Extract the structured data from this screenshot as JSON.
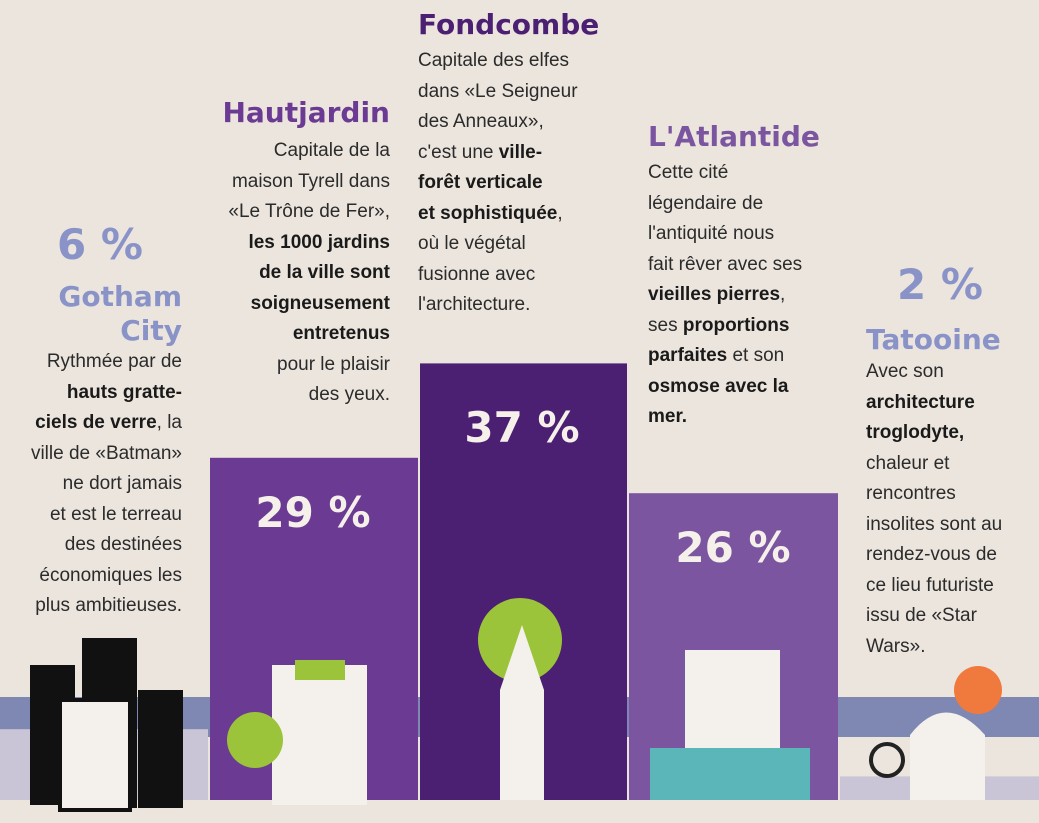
{
  "chart_data": {
    "type": "bar",
    "categories": [
      "Gotham City",
      "Hautjardin",
      "Fondcombe",
      "L'Atlantide",
      "Tatooine"
    ],
    "values": [
      6,
      29,
      37,
      26,
      2
    ],
    "value_labels": [
      "6 %",
      "29 %",
      "37 %",
      "26 %",
      "2 %"
    ],
    "colors": [
      "#c9c4d6",
      "#6b3a93",
      "#4b1f72",
      "#7b55a0",
      "#c9c4d6"
    ],
    "title_colors": [
      "#8a93c8",
      "#6b3a93",
      "#4b1f72",
      "#7b55a0",
      "#8a93c8"
    ],
    "descriptions": [
      [
        [
          {
            "text": "Rythmée par de",
            "bold": false
          }
        ],
        [
          {
            "text": "hauts gratte-",
            "bold": true
          }
        ],
        [
          {
            "text": "ciels de verre",
            "bold": true
          },
          {
            "text": ", la",
            "bold": false
          }
        ],
        [
          {
            "text": "ville de «Batman»",
            "bold": false
          }
        ],
        [
          {
            "text": "ne dort jamais",
            "bold": false
          }
        ],
        [
          {
            "text": "et est le terreau",
            "bold": false
          }
        ],
        [
          {
            "text": "des destinées",
            "bold": false
          }
        ],
        [
          {
            "text": "économiques les",
            "bold": false
          }
        ],
        [
          {
            "text": "plus ambitieuses.",
            "bold": false
          }
        ]
      ],
      [
        [
          {
            "text": "Capitale de la",
            "bold": false
          }
        ],
        [
          {
            "text": "maison Tyrell dans",
            "bold": false
          }
        ],
        [
          {
            "text": "«Le Trône de Fer»,",
            "bold": false
          }
        ],
        [
          {
            "text": "les 1000 jardins",
            "bold": true
          }
        ],
        [
          {
            "text": "de la ville sont",
            "bold": true
          }
        ],
        [
          {
            "text": "soigneusement",
            "bold": true
          }
        ],
        [
          {
            "text": "entretenus",
            "bold": true
          }
        ],
        [
          {
            "text": "pour le plaisir",
            "bold": false
          }
        ],
        [
          {
            "text": "des yeux.",
            "bold": false
          }
        ]
      ],
      [
        [
          {
            "text": "Capitale des elfes",
            "bold": false
          }
        ],
        [
          {
            "text": "dans «Le Seigneur",
            "bold": false
          }
        ],
        [
          {
            "text": "des Anneaux»,",
            "bold": false
          }
        ],
        [
          {
            "text": "c'est une ",
            "bold": false
          },
          {
            "text": "ville-",
            "bold": true
          }
        ],
        [
          {
            "text": "forêt verticale",
            "bold": true
          }
        ],
        [
          {
            "text": "et sophistiquée",
            "bold": true
          },
          {
            "text": ",",
            "bold": false
          }
        ],
        [
          {
            "text": "où le végétal",
            "bold": false
          }
        ],
        [
          {
            "text": "fusionne avec",
            "bold": false
          }
        ],
        [
          {
            "text": "l'architecture.",
            "bold": false
          }
        ]
      ],
      [
        [
          {
            "text": "Cette cité",
            "bold": false
          }
        ],
        [
          {
            "text": "légendaire de",
            "bold": false
          }
        ],
        [
          {
            "text": "l'antiquité nous",
            "bold": false
          }
        ],
        [
          {
            "text": "fait rêver avec ses",
            "bold": false
          }
        ],
        [
          {
            "text": "vieilles pierres",
            "bold": true
          },
          {
            "text": ",",
            "bold": false
          }
        ],
        [
          {
            "text": "ses ",
            "bold": false
          },
          {
            "text": "proportions",
            "bold": true
          }
        ],
        [
          {
            "text": "parfaites",
            "bold": true
          },
          {
            "text": " et son",
            "bold": false
          }
        ],
        [
          {
            "text": "osmose avec la",
            "bold": true
          }
        ],
        [
          {
            "text": "mer.",
            "bold": true
          }
        ]
      ],
      [
        [
          {
            "text": "Avec son",
            "bold": false
          }
        ],
        [
          {
            "text": "architecture",
            "bold": true
          }
        ],
        [
          {
            "text": "troglodyte,",
            "bold": true
          }
        ],
        [
          {
            "text": "chaleur et",
            "bold": false
          }
        ],
        [
          {
            "text": "rencontres",
            "bold": false
          }
        ],
        [
          {
            "text": "insolites sont au",
            "bold": false
          }
        ],
        [
          {
            "text": "rendez-vous de",
            "bold": false
          }
        ],
        [
          {
            "text": "ce lieu futuriste",
            "bold": false
          }
        ],
        [
          {
            "text": "issu de «Star",
            "bold": false
          }
        ],
        [
          {
            "text": "Wars».",
            "bold": false
          }
        ]
      ]
    ]
  }
}
